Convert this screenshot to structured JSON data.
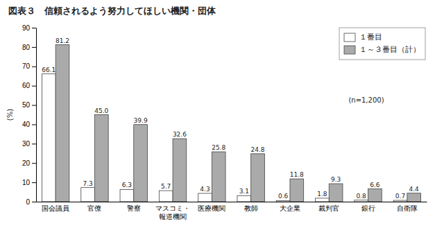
{
  "chart_data": {
    "type": "bar",
    "title": "図表３　信頼されるよう努力してほしい機関・団体",
    "ylabel": "(%)",
    "categories": [
      "国会議員",
      "官僚",
      "警察",
      "マスコミ・\n報道機関",
      "医療機関",
      "教師",
      "大企業",
      "裁判官",
      "銀行",
      "自衛隊"
    ],
    "series": [
      {
        "name": "１番目",
        "color": "#ffffff",
        "values": [
          66.1,
          7.3,
          6.3,
          5.7,
          4.3,
          3.1,
          0.6,
          1.8,
          0.8,
          0.7
        ],
        "value_labels": [
          "66.1",
          "7.3",
          "6.3",
          "5.7",
          "4.3",
          "3.1",
          "0.6",
          "1.8",
          "0.8",
          "0.7"
        ]
      },
      {
        "name": "１～３番目（計）",
        "color": "#aaaaaa",
        "values": [
          81.2,
          45.0,
          39.9,
          32.6,
          25.8,
          24.8,
          11.8,
          9.3,
          6.6,
          4.4
        ],
        "value_labels": [
          "81.2",
          "45.0",
          "39.9",
          "32.6",
          "25.8",
          "24.8",
          "11.8",
          "9.3",
          "6.6",
          "4.4"
        ]
      }
    ],
    "annotations": [
      "(n=1,200)"
    ],
    "ylim": [
      0,
      90
    ],
    "yticks": [
      0,
      10,
      20,
      30,
      40,
      50,
      60,
      70,
      80,
      90
    ],
    "grid": false,
    "legend": "upper right",
    "data_labels": true
  }
}
